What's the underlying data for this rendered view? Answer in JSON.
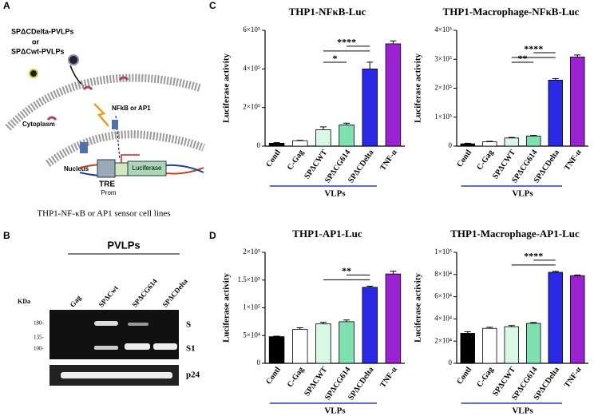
{
  "panel_labels": [
    "A",
    "B",
    "C",
    "D"
  ],
  "panel_a": {
    "vlp_delta": "SPΔCDelta-PVLPs",
    "or": "or",
    "vlp_wt": "SPΔCwt-PVLPs",
    "factor": "NFkB or AP1",
    "cytoplasm": "Cytoplasm",
    "nucleus": "Nucleus",
    "tre": "TRE",
    "prom": "Prom",
    "luciferase": "Luciferase",
    "caption": "THP1-NF-κB or AP1 sensor cell lines"
  },
  "panel_b": {
    "title": "PVLPs",
    "kda": "KDa",
    "lanes": [
      "Gag",
      "SPΔCwt",
      "SPΔCG614",
      "SPΔCDelta"
    ],
    "markers": [
      "180-",
      "135-",
      "100-"
    ],
    "bands": [
      "S",
      "S1",
      "p24"
    ]
  },
  "chart_data": [
    {
      "type": "bar",
      "title": "THP1-NFκB-Luc",
      "y_label": "Luciferase activity",
      "categories": [
        "Contl",
        "C-Gag",
        "SPΔCWT",
        "SPΔCG614",
        "SPΔCDelta",
        "TNF-α"
      ],
      "values": [
        15000,
        28000,
        85000,
        110000,
        400000,
        530000
      ],
      "errors": [
        3000,
        2000,
        15000,
        9000,
        35000,
        15000
      ],
      "colors": [
        "#000000",
        "#ffffff",
        "#d8f7e4",
        "#7fe0b0",
        "#2a2ae6",
        "#9a22d0"
      ],
      "ylim": [
        0,
        600000
      ],
      "yticks": [
        0,
        {
          "value": 200000,
          "label": "2×10⁵"
        },
        {
          "value": 400000,
          "label": "4×10⁵"
        },
        {
          "value": 600000,
          "label": "6×10⁵"
        }
      ],
      "group_label": "VLPs",
      "annotations": [
        "*",
        "****"
      ]
    },
    {
      "type": "bar",
      "title": "THP1-Macrophage-NFκB-Luc",
      "y_label": "Luciferase activity",
      "categories": [
        "Contl",
        "C-Gag",
        "SPΔCWT",
        "SPΔCG614",
        "SPΔCDelta",
        "TNF-α"
      ],
      "values": [
        8000,
        15000,
        28000,
        35000,
        228000,
        308000
      ],
      "errors": [
        2000,
        1500,
        2000,
        2000,
        5000,
        7000
      ],
      "colors": [
        "#000000",
        "#ffffff",
        "#d8f7e4",
        "#7fe0b0",
        "#2a2ae6",
        "#9a22d0"
      ],
      "ylim": [
        0,
        400000
      ],
      "yticks": [
        0,
        {
          "value": 100000,
          "label": "1×10⁵"
        },
        {
          "value": 200000,
          "label": "2×10⁵"
        },
        {
          "value": 300000,
          "label": "3×10⁵"
        },
        {
          "value": 400000,
          "label": "4×10⁵"
        }
      ],
      "group_label": "VLPs",
      "annotations": [
        "**",
        "****"
      ]
    },
    {
      "type": "bar",
      "title": "THP1-AP1-Luc",
      "y_label": "Luciferase activity",
      "categories": [
        "Contl",
        "C-Gag",
        "SPΔCWT",
        "SPΔCG614",
        "SPΔCDelta",
        "TNF-α"
      ],
      "values": [
        48000,
        61000,
        71000,
        75000,
        137000,
        161000
      ],
      "errors": [
        1000,
        3000,
        3000,
        3000,
        2000,
        5000
      ],
      "colors": [
        "#000000",
        "#ffffff",
        "#d8f7e4",
        "#7fe0b0",
        "#2a2ae6",
        "#9a22d0"
      ],
      "ylim": [
        0,
        200000
      ],
      "yticks": [
        0,
        {
          "value": 50000,
          "label": "5×10⁴"
        },
        {
          "value": 100000,
          "label": "1×10⁵"
        },
        {
          "value": 150000,
          "label": "1.5×10⁵"
        },
        {
          "value": 200000,
          "label": "2×10⁵"
        }
      ],
      "group_label": "VLPs",
      "annotations": [
        "**"
      ]
    },
    {
      "type": "bar",
      "title": "THP1-Macrophage-AP1-Luc",
      "y_label": "Luciferase activity",
      "categories": [
        "Contl",
        "C-Gag",
        "SPΔCWT",
        "SPΔCG614",
        "SPΔCDelta",
        "TNF-α"
      ],
      "values": [
        27000,
        31500,
        33000,
        36000,
        82000,
        79000
      ],
      "errors": [
        1500,
        1000,
        1000,
        800,
        800,
        600
      ],
      "colors": [
        "#000000",
        "#ffffff",
        "#d8f7e4",
        "#7fe0b0",
        "#2a2ae6",
        "#9a22d0"
      ],
      "ylim": [
        0,
        100000
      ],
      "yticks": [
        0,
        {
          "value": 20000,
          "label": "2×10⁴"
        },
        {
          "value": 40000,
          "label": "4×10⁴"
        },
        {
          "value": 60000,
          "label": "6×10⁴"
        },
        {
          "value": 80000,
          "label": "8×10⁴"
        },
        {
          "value": 100000,
          "label": "1×10⁵"
        }
      ],
      "group_label": "VLPs",
      "annotations": [
        "****"
      ]
    }
  ]
}
